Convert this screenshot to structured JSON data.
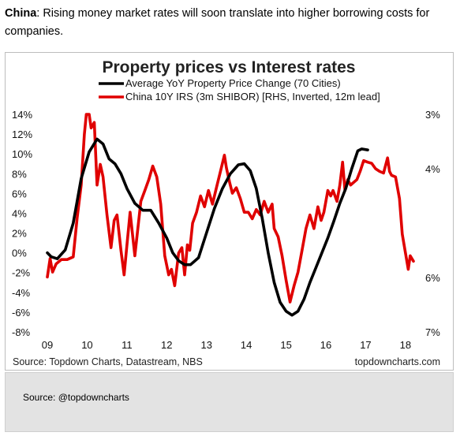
{
  "intro": {
    "country": "China",
    "text": ": Rising money market rates will soon translate into higher borrowing costs for companies."
  },
  "footer_box": {
    "source": "Source: @topdowncharts"
  },
  "chart_data": {
    "type": "line",
    "title": "Property prices vs Interest rates",
    "source": "Source: Topdown Charts, Datastream, NBS",
    "watermark": "topdowncharts.com",
    "x_tick_labels": [
      "09",
      "10",
      "11",
      "12",
      "13",
      "14",
      "15",
      "16",
      "17",
      "18"
    ],
    "x_range": [
      2009.0,
      2018.3
    ],
    "left_axis": {
      "range": [
        -8,
        14
      ],
      "ticks": [
        14,
        12,
        10,
        8,
        6,
        4,
        2,
        0,
        -2,
        -4,
        -6,
        -8
      ],
      "tick_labels": [
        "14%",
        "12%",
        "10%",
        "8%",
        "6%",
        "4%",
        "2%",
        "0%",
        "-2%",
        "-4%",
        "-6%",
        "-8%"
      ]
    },
    "right_axis": {
      "inverted": true,
      "range": [
        3,
        7
      ],
      "ticks": [
        3,
        4,
        6,
        7
      ],
      "tick_labels": [
        "3%",
        "4%",
        "6%",
        "7%"
      ]
    },
    "legend_position": "top-center",
    "grid": false,
    "series": [
      {
        "name": "Average YoY Property Price Change (70 Cities)",
        "color": "#000000",
        "axis": "left",
        "points": [
          [
            2009.0,
            0.0
          ],
          [
            2009.1,
            -0.4
          ],
          [
            2009.25,
            -0.6
          ],
          [
            2009.45,
            0.3
          ],
          [
            2009.65,
            3.0
          ],
          [
            2009.85,
            7.5
          ],
          [
            2010.05,
            10.2
          ],
          [
            2010.25,
            11.5
          ],
          [
            2010.4,
            11.0
          ],
          [
            2010.55,
            9.5
          ],
          [
            2010.7,
            9.0
          ],
          [
            2010.85,
            8.0
          ],
          [
            2011.0,
            6.5
          ],
          [
            2011.2,
            5.0
          ],
          [
            2011.4,
            4.3
          ],
          [
            2011.6,
            4.3
          ],
          [
            2011.8,
            3.0
          ],
          [
            2012.0,
            1.5
          ],
          [
            2012.15,
            0.0
          ],
          [
            2012.3,
            -0.8
          ],
          [
            2012.45,
            -1.2
          ],
          [
            2012.6,
            -1.2
          ],
          [
            2012.8,
            -0.5
          ],
          [
            2013.0,
            2.0
          ],
          [
            2013.2,
            4.5
          ],
          [
            2013.4,
            6.5
          ],
          [
            2013.6,
            8.0
          ],
          [
            2013.8,
            8.9
          ],
          [
            2013.95,
            9.0
          ],
          [
            2014.1,
            8.3
          ],
          [
            2014.25,
            6.5
          ],
          [
            2014.4,
            3.5
          ],
          [
            2014.55,
            0.0
          ],
          [
            2014.7,
            -3.0
          ],
          [
            2014.85,
            -5.0
          ],
          [
            2015.0,
            -5.9
          ],
          [
            2015.15,
            -6.3
          ],
          [
            2015.3,
            -5.9
          ],
          [
            2015.45,
            -4.7
          ],
          [
            2015.6,
            -3.0
          ],
          [
            2015.75,
            -1.5
          ],
          [
            2015.9,
            0.0
          ],
          [
            2016.05,
            1.5
          ],
          [
            2016.2,
            3.2
          ],
          [
            2016.35,
            5.0
          ],
          [
            2016.5,
            6.5
          ],
          [
            2016.65,
            8.5
          ],
          [
            2016.8,
            10.3
          ],
          [
            2016.9,
            10.5
          ],
          [
            2017.05,
            10.4
          ]
        ]
      },
      {
        "name": "China 10Y IRS (3m SHIBOR) [RHS, Inverted, 12m lead]",
        "color": "#e00000",
        "axis": "right",
        "points": [
          [
            2009.0,
            5.99
          ],
          [
            2009.07,
            5.65
          ],
          [
            2009.13,
            5.9
          ],
          [
            2009.22,
            5.75
          ],
          [
            2009.35,
            5.67
          ],
          [
            2009.5,
            5.67
          ],
          [
            2009.65,
            5.62
          ],
          [
            2009.75,
            4.9
          ],
          [
            2009.85,
            4.3
          ],
          [
            2009.93,
            3.37
          ],
          [
            2009.98,
            3.0
          ],
          [
            2010.05,
            3.0
          ],
          [
            2010.1,
            3.25
          ],
          [
            2010.18,
            3.15
          ],
          [
            2010.25,
            4.3
          ],
          [
            2010.33,
            3.92
          ],
          [
            2010.4,
            4.15
          ],
          [
            2010.5,
            4.85
          ],
          [
            2010.6,
            5.45
          ],
          [
            2010.68,
            4.95
          ],
          [
            2010.75,
            4.85
          ],
          [
            2010.85,
            5.5
          ],
          [
            2010.93,
            5.95
          ],
          [
            2011.0,
            5.4
          ],
          [
            2011.08,
            4.8
          ],
          [
            2011.2,
            5.6
          ],
          [
            2011.35,
            4.6
          ],
          [
            2011.45,
            4.4
          ],
          [
            2011.55,
            4.2
          ],
          [
            2011.65,
            3.95
          ],
          [
            2011.75,
            4.15
          ],
          [
            2011.85,
            4.65
          ],
          [
            2011.95,
            5.6
          ],
          [
            2012.05,
            5.95
          ],
          [
            2012.12,
            5.85
          ],
          [
            2012.2,
            6.15
          ],
          [
            2012.3,
            5.55
          ],
          [
            2012.38,
            5.45
          ],
          [
            2012.45,
            5.95
          ],
          [
            2012.52,
            5.4
          ],
          [
            2012.58,
            5.5
          ],
          [
            2012.65,
            5.0
          ],
          [
            2012.75,
            4.8
          ],
          [
            2012.85,
            4.5
          ],
          [
            2012.95,
            4.7
          ],
          [
            2013.05,
            4.4
          ],
          [
            2013.15,
            4.65
          ],
          [
            2013.25,
            4.35
          ],
          [
            2013.35,
            4.05
          ],
          [
            2013.45,
            3.75
          ],
          [
            2013.5,
            3.98
          ],
          [
            2013.58,
            4.25
          ],
          [
            2013.65,
            4.45
          ],
          [
            2013.75,
            4.35
          ],
          [
            2013.85,
            4.55
          ],
          [
            2013.95,
            4.8
          ],
          [
            2014.05,
            4.8
          ],
          [
            2014.15,
            4.92
          ],
          [
            2014.25,
            4.75
          ],
          [
            2014.35,
            4.85
          ],
          [
            2014.45,
            4.6
          ],
          [
            2014.55,
            4.8
          ],
          [
            2014.65,
            4.65
          ],
          [
            2014.7,
            5.1
          ],
          [
            2014.8,
            5.25
          ],
          [
            2014.9,
            5.6
          ],
          [
            2015.0,
            6.05
          ],
          [
            2015.1,
            6.45
          ],
          [
            2015.2,
            6.15
          ],
          [
            2015.3,
            5.9
          ],
          [
            2015.4,
            5.5
          ],
          [
            2015.5,
            5.1
          ],
          [
            2015.6,
            4.85
          ],
          [
            2015.7,
            5.1
          ],
          [
            2015.8,
            4.7
          ],
          [
            2015.88,
            4.95
          ],
          [
            2015.95,
            4.8
          ],
          [
            2016.05,
            4.4
          ],
          [
            2016.12,
            4.5
          ],
          [
            2016.18,
            4.4
          ],
          [
            2016.28,
            4.6
          ],
          [
            2016.35,
            4.3
          ],
          [
            2016.42,
            3.88
          ],
          [
            2016.48,
            4.4
          ],
          [
            2016.55,
            4.2
          ],
          [
            2016.62,
            4.3
          ],
          [
            2016.7,
            4.25
          ],
          [
            2016.78,
            4.2
          ],
          [
            2016.86,
            4.05
          ],
          [
            2016.95,
            3.85
          ],
          [
            2017.05,
            3.88
          ],
          [
            2017.15,
            3.9
          ],
          [
            2017.25,
            4.0
          ],
          [
            2017.35,
            4.05
          ],
          [
            2017.45,
            4.08
          ],
          [
            2017.55,
            3.8
          ],
          [
            2017.6,
            4.05
          ],
          [
            2017.65,
            4.12
          ],
          [
            2017.75,
            4.15
          ],
          [
            2017.85,
            4.55
          ],
          [
            2017.92,
            5.2
          ],
          [
            2018.0,
            5.55
          ],
          [
            2018.07,
            5.85
          ],
          [
            2018.12,
            5.6
          ],
          [
            2018.2,
            5.7
          ]
        ]
      }
    ]
  }
}
